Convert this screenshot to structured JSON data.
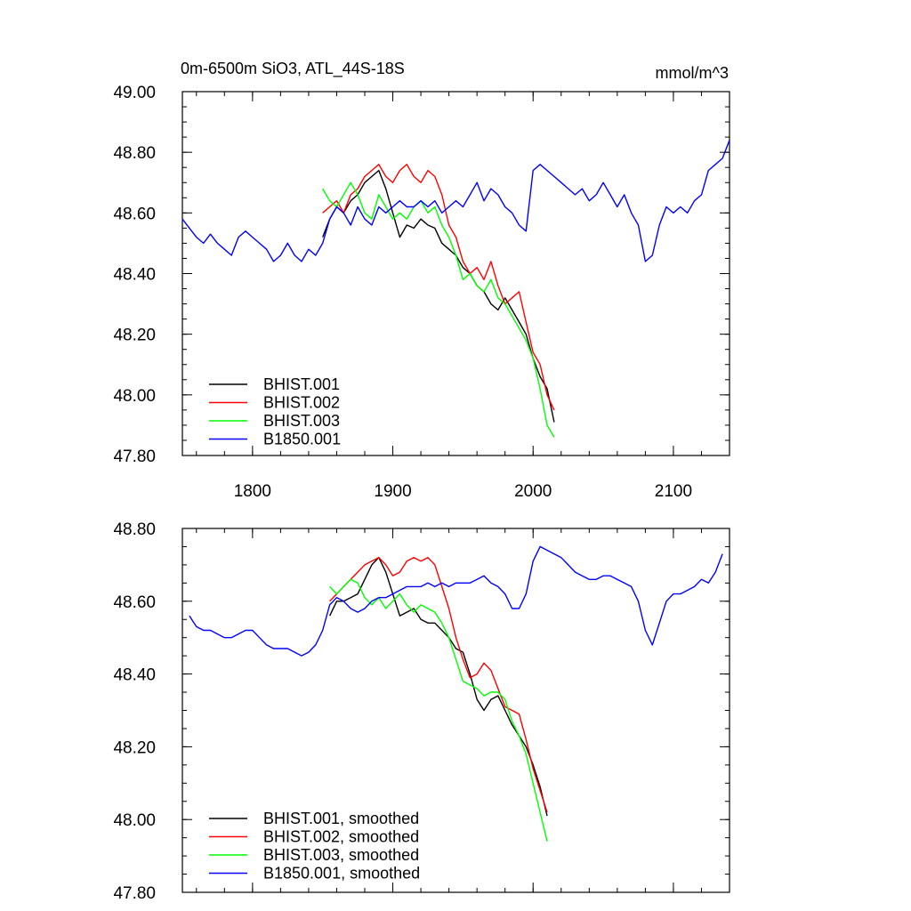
{
  "chart_data": [
    {
      "type": "line",
      "title": "0m-6500m SiO3, ATL_44S-18S",
      "units": "mmol/m^3",
      "xlabel": "",
      "ylabel": "",
      "xlim": [
        1750,
        2140
      ],
      "ylim": [
        47.8,
        49.0
      ],
      "x_ticks": [
        1800,
        1900,
        2000,
        2100
      ],
      "x_tick_labels": [
        "1800",
        "1900",
        "2000",
        "2100"
      ],
      "y_ticks": [
        47.8,
        48.0,
        48.2,
        48.4,
        48.6,
        48.8,
        49.0
      ],
      "y_tick_labels": [
        "47.80",
        "48.00",
        "48.20",
        "48.40",
        "48.60",
        "48.80",
        "49.00"
      ],
      "grid": false,
      "legend_position": "bottom-left",
      "series": [
        {
          "name": "BHIST.001",
          "color": "#000000",
          "x": [
            1850,
            1855,
            1860,
            1865,
            1870,
            1875,
            1880,
            1885,
            1890,
            1895,
            1900,
            1905,
            1910,
            1915,
            1920,
            1925,
            1930,
            1935,
            1940,
            1945,
            1950,
            1955,
            1960,
            1965,
            1970,
            1975,
            1980,
            1985,
            1990,
            1995,
            2000,
            2005,
            2010,
            2015
          ],
          "y": [
            48.52,
            48.58,
            48.62,
            48.6,
            48.64,
            48.66,
            48.7,
            48.72,
            48.74,
            48.68,
            48.6,
            48.52,
            48.56,
            48.55,
            48.58,
            48.56,
            48.55,
            48.5,
            48.48,
            48.46,
            48.42,
            48.4,
            48.36,
            48.34,
            48.3,
            48.28,
            48.32,
            48.28,
            48.24,
            48.2,
            48.12,
            48.06,
            48.02,
            47.91
          ]
        },
        {
          "name": "BHIST.002",
          "color": "#ff0000",
          "x": [
            1850,
            1855,
            1860,
            1865,
            1870,
            1875,
            1880,
            1885,
            1890,
            1895,
            1900,
            1905,
            1910,
            1915,
            1920,
            1925,
            1930,
            1935,
            1940,
            1945,
            1950,
            1955,
            1960,
            1965,
            1970,
            1975,
            1980,
            1985,
            1990,
            1995,
            2000,
            2005,
            2010,
            2015
          ],
          "y": [
            48.6,
            48.62,
            48.64,
            48.6,
            48.66,
            48.68,
            48.72,
            48.74,
            48.76,
            48.72,
            48.7,
            48.74,
            48.76,
            48.72,
            48.7,
            48.74,
            48.72,
            48.66,
            48.56,
            48.52,
            48.44,
            48.4,
            48.42,
            48.38,
            48.44,
            48.36,
            48.3,
            48.32,
            48.34,
            48.24,
            48.14,
            48.1,
            48.0,
            47.95
          ]
        },
        {
          "name": "BHIST.003",
          "color": "#00ff00",
          "x": [
            1850,
            1855,
            1860,
            1865,
            1870,
            1875,
            1880,
            1885,
            1890,
            1895,
            1900,
            1905,
            1910,
            1915,
            1920,
            1925,
            1930,
            1935,
            1940,
            1945,
            1950,
            1955,
            1960,
            1965,
            1970,
            1975,
            1980,
            1985,
            1990,
            1995,
            2000,
            2005,
            2010,
            2015
          ],
          "y": [
            48.68,
            48.64,
            48.62,
            48.66,
            48.7,
            48.66,
            48.6,
            48.58,
            48.66,
            48.62,
            48.58,
            48.6,
            48.58,
            48.62,
            48.64,
            48.6,
            48.62,
            48.56,
            48.52,
            48.46,
            48.38,
            48.4,
            48.36,
            48.34,
            48.38,
            48.32,
            48.3,
            48.26,
            48.22,
            48.18,
            48.12,
            48.02,
            47.9,
            47.86
          ]
        },
        {
          "name": "B1850.001",
          "color": "#0000ff",
          "x": [
            1750,
            1755,
            1760,
            1765,
            1770,
            1775,
            1780,
            1785,
            1790,
            1795,
            1800,
            1805,
            1810,
            1815,
            1820,
            1825,
            1830,
            1835,
            1840,
            1845,
            1850,
            1855,
            1860,
            1865,
            1870,
            1875,
            1880,
            1885,
            1890,
            1895,
            1900,
            1905,
            1910,
            1915,
            1920,
            1925,
            1930,
            1935,
            1940,
            1945,
            1950,
            1955,
            1960,
            1965,
            1970,
            1975,
            1980,
            1985,
            1990,
            1995,
            2000,
            2005,
            2010,
            2015,
            2020,
            2025,
            2030,
            2035,
            2040,
            2045,
            2050,
            2055,
            2060,
            2065,
            2070,
            2075,
            2080,
            2085,
            2090,
            2095,
            2100,
            2105,
            2110,
            2115,
            2120,
            2125,
            2130,
            2135,
            2140
          ],
          "y": [
            48.58,
            48.55,
            48.52,
            48.5,
            48.53,
            48.5,
            48.48,
            48.46,
            48.52,
            48.54,
            48.52,
            48.5,
            48.48,
            48.44,
            48.46,
            48.5,
            48.46,
            48.44,
            48.48,
            48.46,
            48.5,
            48.58,
            48.62,
            48.6,
            48.56,
            48.62,
            48.58,
            48.56,
            48.62,
            48.6,
            48.62,
            48.64,
            48.62,
            48.62,
            48.64,
            48.62,
            48.64,
            48.6,
            48.62,
            48.64,
            48.62,
            48.66,
            48.7,
            48.64,
            48.68,
            48.66,
            48.62,
            48.6,
            48.56,
            48.54,
            48.74,
            48.76,
            48.74,
            48.72,
            48.7,
            48.68,
            48.66,
            48.68,
            48.64,
            48.66,
            48.7,
            48.66,
            48.62,
            48.66,
            48.6,
            48.56,
            48.44,
            48.46,
            48.56,
            48.62,
            48.6,
            48.62,
            48.6,
            48.64,
            48.66,
            48.74,
            48.76,
            48.78,
            48.84
          ]
        }
      ]
    },
    {
      "type": "line",
      "title": "",
      "xlabel": "",
      "ylabel": "",
      "xlim": [
        1750,
        2140
      ],
      "ylim": [
        47.8,
        48.8
      ],
      "x_ticks": [
        1800,
        1900,
        2000,
        2100
      ],
      "x_tick_labels": [],
      "y_ticks": [
        47.8,
        48.0,
        48.2,
        48.4,
        48.6,
        48.8
      ],
      "y_tick_labels": [
        "47.80",
        "48.00",
        "48.20",
        "48.40",
        "48.60",
        "48.80"
      ],
      "grid": false,
      "legend_position": "bottom-left",
      "series": [
        {
          "name": "BHIST.001, smoothed",
          "color": "#000000",
          "x": [
            1855,
            1860,
            1865,
            1870,
            1875,
            1880,
            1885,
            1890,
            1895,
            1900,
            1905,
            1910,
            1915,
            1920,
            1925,
            1930,
            1935,
            1940,
            1945,
            1950,
            1955,
            1960,
            1965,
            1970,
            1975,
            1980,
            1985,
            1990,
            1995,
            2000,
            2005,
            2010
          ],
          "y": [
            48.56,
            48.6,
            48.6,
            48.61,
            48.62,
            48.66,
            48.7,
            48.72,
            48.68,
            48.62,
            48.56,
            48.57,
            48.58,
            48.55,
            48.54,
            48.54,
            48.52,
            48.5,
            48.47,
            48.46,
            48.4,
            48.33,
            48.3,
            48.33,
            48.34,
            48.3,
            48.26,
            48.23,
            48.2,
            48.15,
            48.09,
            48.01
          ]
        },
        {
          "name": "BHIST.002, smoothed",
          "color": "#ff0000",
          "x": [
            1855,
            1860,
            1865,
            1870,
            1875,
            1880,
            1885,
            1890,
            1895,
            1900,
            1905,
            1910,
            1915,
            1920,
            1925,
            1930,
            1935,
            1940,
            1945,
            1950,
            1955,
            1960,
            1965,
            1970,
            1975,
            1980,
            1985,
            1990,
            1995,
            2000,
            2005,
            2010
          ],
          "y": [
            48.6,
            48.62,
            48.64,
            48.66,
            48.68,
            48.7,
            48.71,
            48.72,
            48.7,
            48.67,
            48.68,
            48.71,
            48.72,
            48.71,
            48.72,
            48.7,
            48.64,
            48.58,
            48.5,
            48.44,
            48.39,
            48.4,
            48.43,
            48.41,
            48.36,
            48.31,
            48.3,
            48.29,
            48.22,
            48.14,
            48.08,
            48.02
          ]
        },
        {
          "name": "BHIST.003, smoothed",
          "color": "#00ff00",
          "x": [
            1855,
            1860,
            1865,
            1870,
            1875,
            1880,
            1885,
            1890,
            1895,
            1900,
            1905,
            1910,
            1915,
            1920,
            1925,
            1930,
            1935,
            1940,
            1945,
            1950,
            1955,
            1960,
            1965,
            1970,
            1975,
            1980,
            1985,
            1990,
            1995,
            2000,
            2005,
            2010
          ],
          "y": [
            48.64,
            48.62,
            48.64,
            48.66,
            48.65,
            48.61,
            48.59,
            48.61,
            48.58,
            48.6,
            48.62,
            48.59,
            48.57,
            48.59,
            48.58,
            48.57,
            48.54,
            48.5,
            48.44,
            48.38,
            48.37,
            48.36,
            48.34,
            48.35,
            48.35,
            48.33,
            48.27,
            48.23,
            48.18,
            48.1,
            48.02,
            47.94
          ]
        },
        {
          "name": "B1850.001, smoothed",
          "color": "#0000ff",
          "x": [
            1755,
            1760,
            1765,
            1770,
            1775,
            1780,
            1785,
            1790,
            1795,
            1800,
            1805,
            1810,
            1815,
            1820,
            1825,
            1830,
            1835,
            1840,
            1845,
            1850,
            1855,
            1860,
            1865,
            1870,
            1875,
            1880,
            1885,
            1890,
            1895,
            1900,
            1905,
            1910,
            1915,
            1920,
            1925,
            1930,
            1935,
            1940,
            1945,
            1950,
            1955,
            1960,
            1965,
            1970,
            1975,
            1980,
            1985,
            1990,
            1995,
            2000,
            2005,
            2010,
            2015,
            2020,
            2025,
            2030,
            2035,
            2040,
            2045,
            2050,
            2055,
            2060,
            2065,
            2070,
            2075,
            2080,
            2085,
            2090,
            2095,
            2100,
            2105,
            2110,
            2115,
            2120,
            2125,
            2130,
            2135
          ],
          "y": [
            48.56,
            48.53,
            48.52,
            48.52,
            48.51,
            48.5,
            48.5,
            48.51,
            48.52,
            48.52,
            48.5,
            48.48,
            48.47,
            48.47,
            48.47,
            48.46,
            48.45,
            48.46,
            48.48,
            48.52,
            48.59,
            48.61,
            48.6,
            48.58,
            48.57,
            48.58,
            48.6,
            48.61,
            48.61,
            48.62,
            48.63,
            48.64,
            48.64,
            48.64,
            48.65,
            48.64,
            48.65,
            48.64,
            48.65,
            48.65,
            48.65,
            48.66,
            48.67,
            48.65,
            48.64,
            48.62,
            48.58,
            48.58,
            48.62,
            48.71,
            48.75,
            48.74,
            48.73,
            48.72,
            48.7,
            48.68,
            48.67,
            48.66,
            48.66,
            48.67,
            48.67,
            48.66,
            48.65,
            48.64,
            48.6,
            48.52,
            48.48,
            48.54,
            48.6,
            48.62,
            48.62,
            48.63,
            48.64,
            48.66,
            48.65,
            48.68,
            48.73
          ]
        }
      ]
    }
  ]
}
